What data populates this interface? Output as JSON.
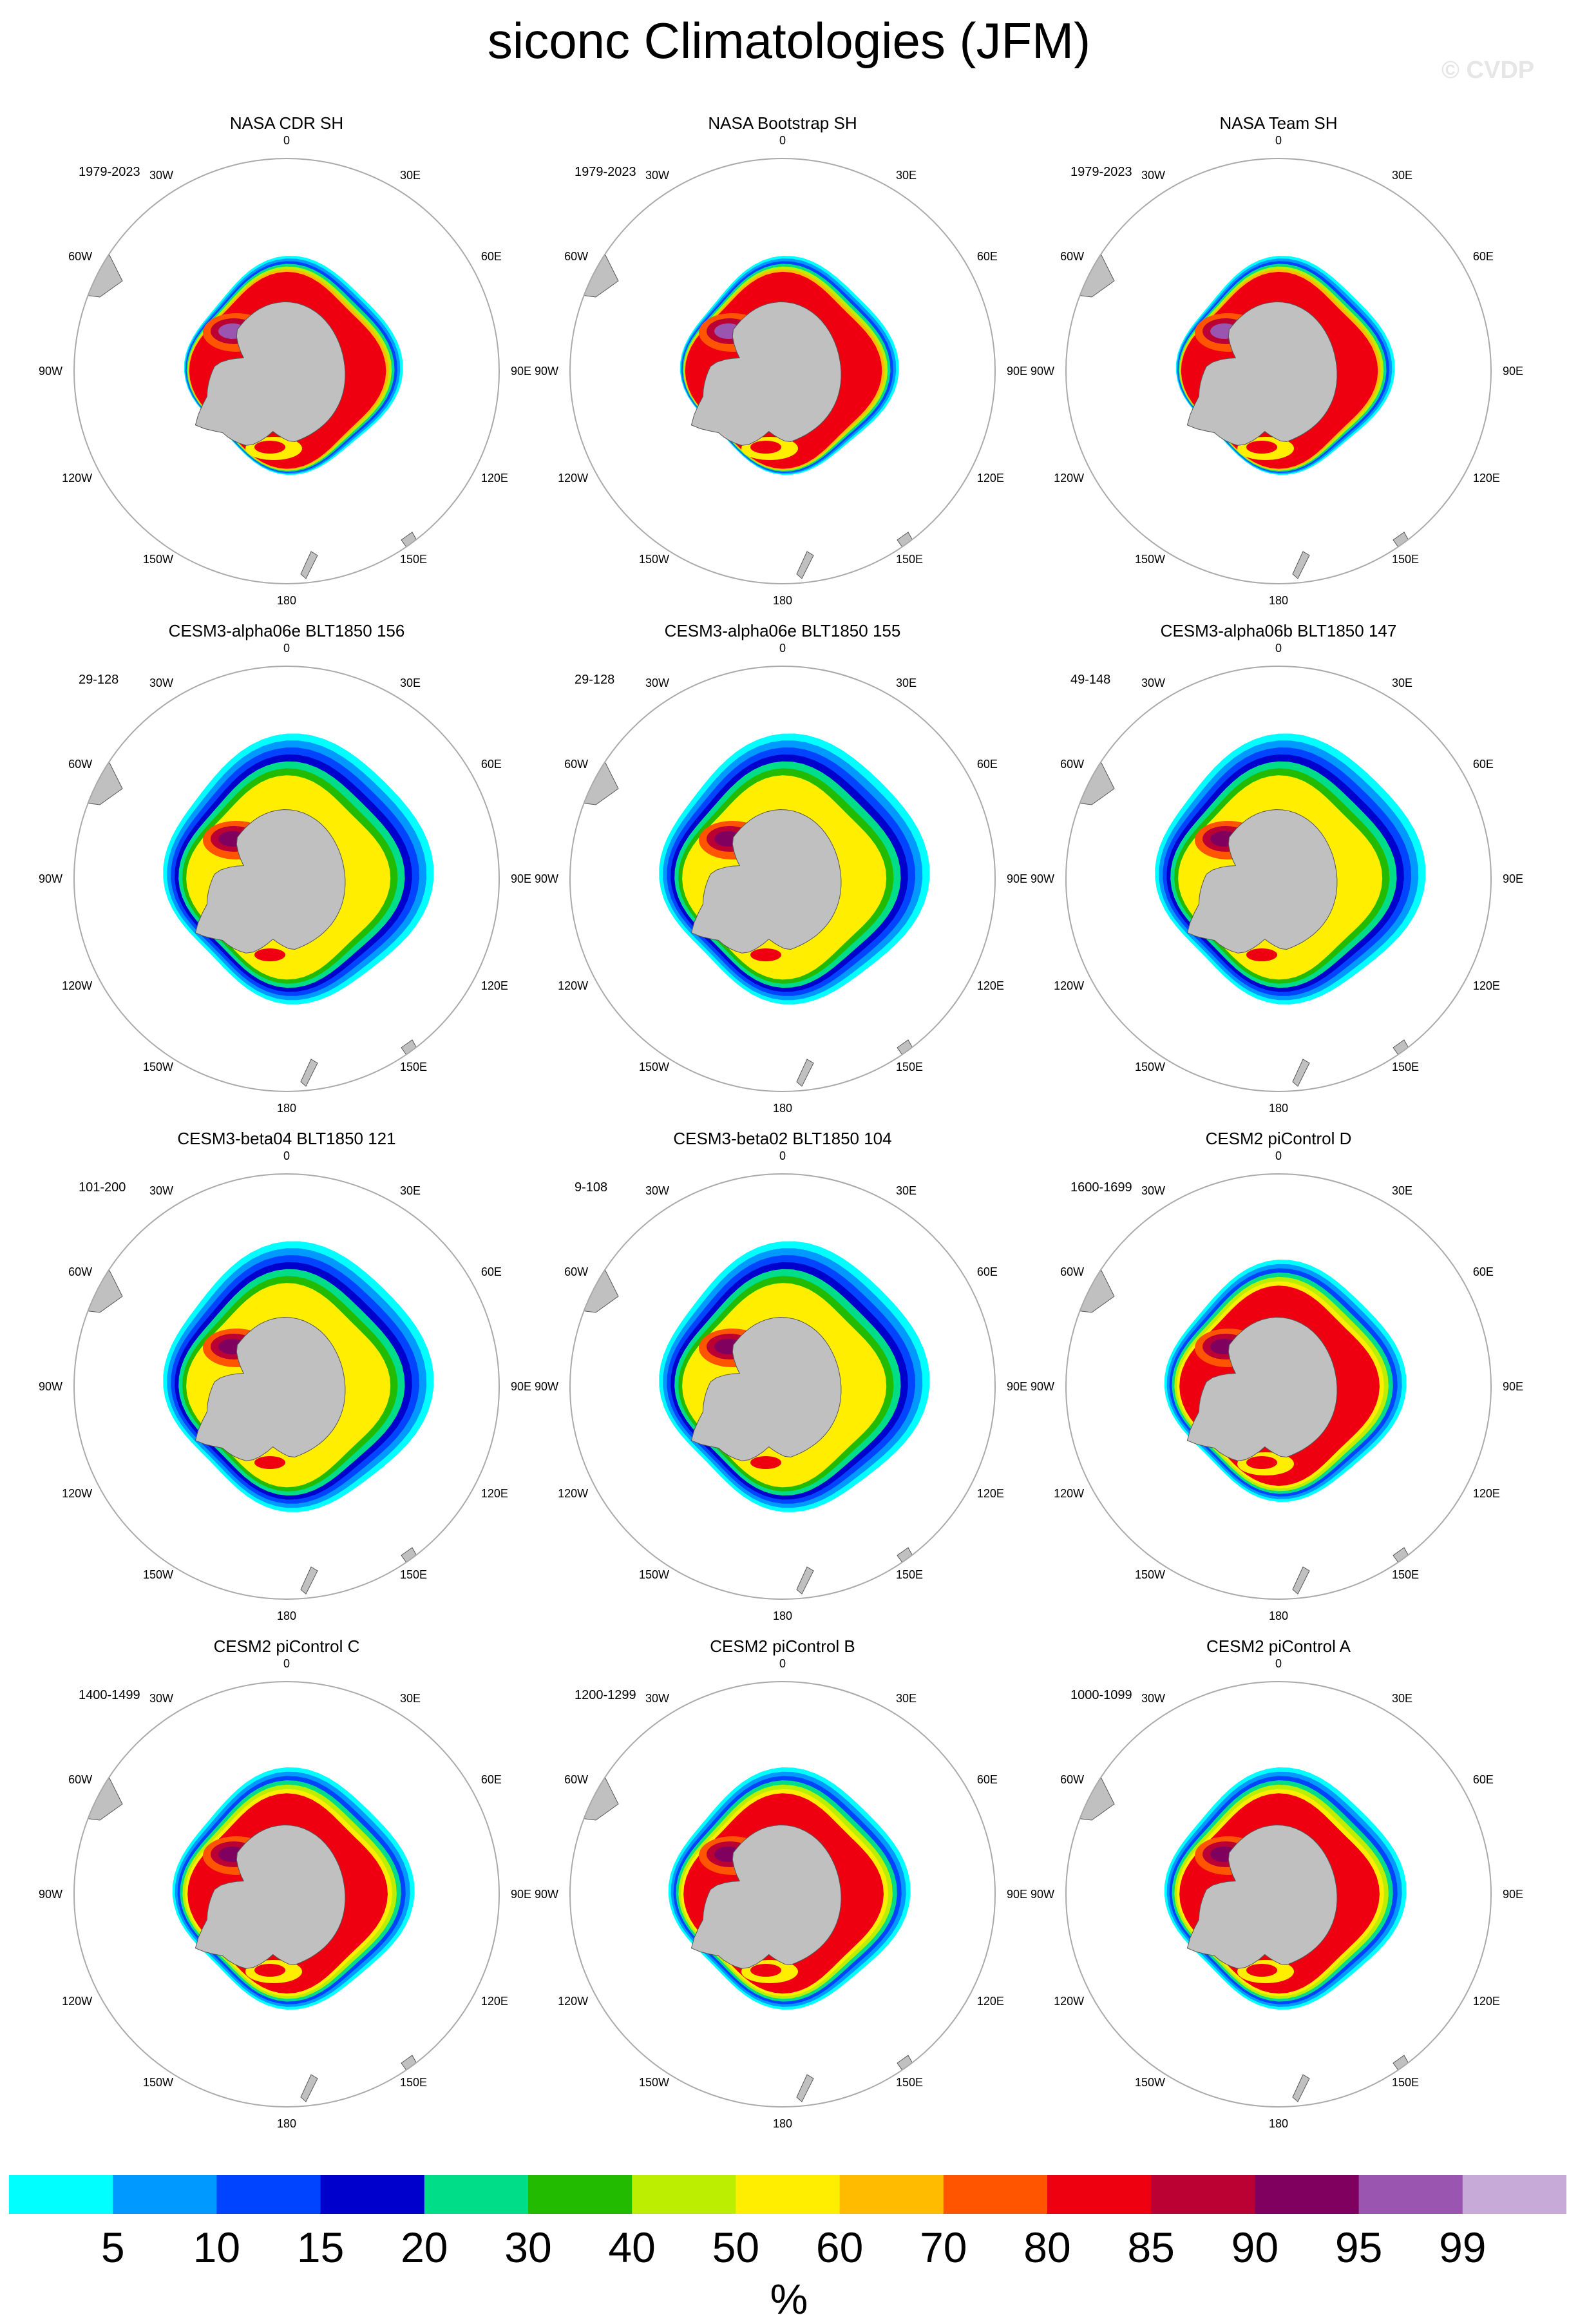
{
  "title": "siconc Climatologies (JFM)",
  "watermark": "© CVDP",
  "longitude_labels": [
    "0",
    "30E",
    "60E",
    "90E",
    "120E",
    "150E",
    "180",
    "150W",
    "120W",
    "90W",
    "60W",
    "30W"
  ],
  "panels": [
    {
      "title": "NASA CDR SH",
      "years": "1979-2023",
      "extent": "obs"
    },
    {
      "title": "NASA Bootstrap SH",
      "years": "1979-2023",
      "extent": "obs"
    },
    {
      "title": "NASA Team SH",
      "years": "1979-2023",
      "extent": "obs"
    },
    {
      "title": "CESM3-alpha06e BLT1850 156",
      "years": "29-128",
      "extent": "large"
    },
    {
      "title": "CESM3-alpha06e BLT1850 155",
      "years": "29-128",
      "extent": "large"
    },
    {
      "title": "CESM3-alpha06b BLT1850 147",
      "years": "49-148",
      "extent": "large"
    },
    {
      "title": "CESM3-beta04 BLT1850 121",
      "years": "101-200",
      "extent": "large"
    },
    {
      "title": "CESM3-beta02 BLT1850 104",
      "years": "9-108",
      "extent": "large"
    },
    {
      "title": "CESM2 piControl D",
      "years": "1600-1699",
      "extent": "medium"
    },
    {
      "title": "CESM2 piControl C",
      "years": "1400-1499",
      "extent": "medium"
    },
    {
      "title": "CESM2 piControl B",
      "years": "1200-1299",
      "extent": "medium"
    },
    {
      "title": "CESM2 piControl A",
      "years": "1000-1099",
      "extent": "medium"
    }
  ],
  "colorbar": {
    "unit": "%",
    "labels": [
      "5",
      "10",
      "15",
      "20",
      "30",
      "40",
      "50",
      "60",
      "70",
      "80",
      "85",
      "90",
      "95",
      "99"
    ],
    "colors": [
      "#00ffff",
      "#0099ff",
      "#0044ff",
      "#0000cc",
      "#00dd88",
      "#22bb00",
      "#bbee00",
      "#ffee00",
      "#ffbb00",
      "#ff5500",
      "#ee0011",
      "#bb0033",
      "#800060",
      "#9955b0",
      "#c8aad8"
    ]
  },
  "colors": {
    "land": "#c0c0c0",
    "land_outline": "#555555",
    "map_circle": "#aaaaaa"
  }
}
